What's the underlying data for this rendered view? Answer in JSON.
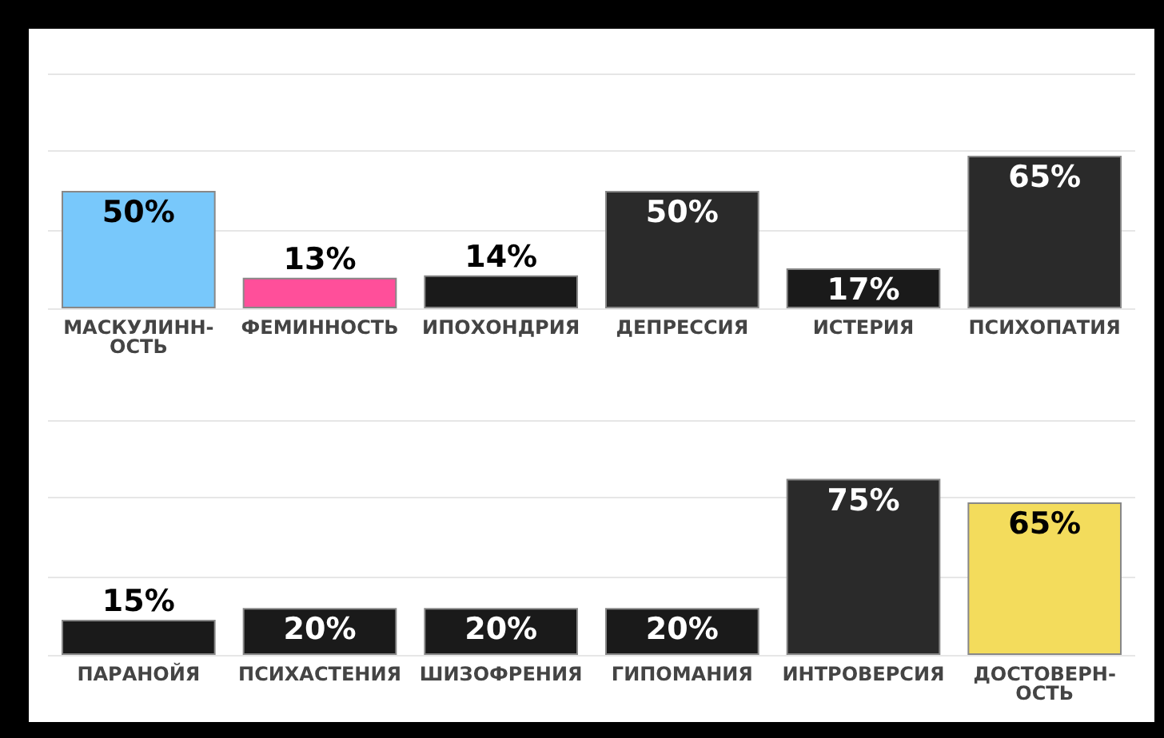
{
  "chart_data": [
    {
      "type": "bar",
      "categories": [
        "МАСКУЛИНН-ОСТЬ",
        "ФЕМИННОСТЬ",
        "ИПОХОНДРИЯ",
        "ДЕПРЕССИЯ",
        "ИСТЕРИЯ",
        "ПСИХОПАТИЯ"
      ],
      "values": [
        50,
        13,
        14,
        50,
        17,
        65
      ],
      "colors": [
        "#78c8fb",
        "#ff4f9a",
        "#1a1a1a",
        "#2a2a2a",
        "#1a1a1a",
        "#2a2a2a"
      ],
      "value_labels": [
        "50%",
        "13%",
        "14%",
        "50%",
        "17%",
        "65%"
      ],
      "ylim": [
        0,
        100
      ],
      "yticks": [
        {
          "value": 0,
          "label": null
        },
        {
          "value": 33,
          "label": null
        },
        {
          "value": 67,
          "label": null
        },
        {
          "value": 100,
          "label": null
        }
      ],
      "grid": "y",
      "tick_labels": "x"
    },
    {
      "type": "bar",
      "categories": [
        "ПАРАНОЙЯ",
        "ПСИХАСТЕНИЯ",
        "ШИЗОФРЕНИЯ",
        "ГИПОМАНИЯ",
        "ИНТРОВЕРСИЯ",
        "ДОСТОВЕРН-ОСТЬ"
      ],
      "values": [
        15,
        20,
        20,
        20,
        75,
        65
      ],
      "colors": [
        "#1a1a1a",
        "#1a1a1a",
        "#1a1a1a",
        "#1a1a1a",
        "#2a2a2a",
        "#f3dc5c"
      ],
      "value_labels": [
        "15%",
        "20%",
        "20%",
        "20%",
        "75%",
        "65%"
      ],
      "ylim": [
        0,
        100
      ],
      "yticks": [
        {
          "value": 0,
          "label": null
        },
        {
          "value": 33,
          "label": null
        },
        {
          "value": 67,
          "label": null
        },
        {
          "value": 100,
          "label": null
        }
      ],
      "grid": "y",
      "tick_labels": "x"
    }
  ]
}
